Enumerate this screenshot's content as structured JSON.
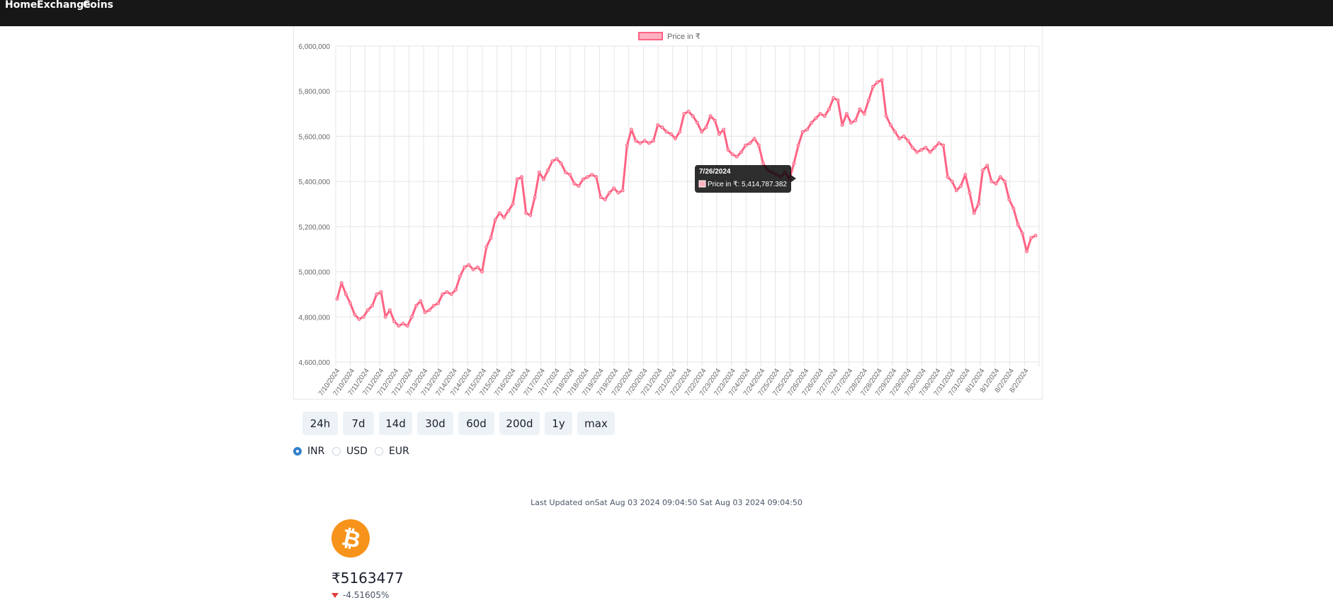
{
  "nav": {
    "home": "Home",
    "exchange": "Exchange",
    "coins": "Coins"
  },
  "chart_data": {
    "type": "line",
    "legend": "Price in ₹",
    "legend_position": "top",
    "grid": true,
    "ylim": [
      4600000,
      6000000
    ],
    "yticks": [
      "6,000,000",
      "5,800,000",
      "5,600,000",
      "5,400,000",
      "5,200,000",
      "5,000,000",
      "4,800,000",
      "4,600,000"
    ],
    "x_labels": [
      "7/10/2024",
      "7/10/2024",
      "7/11/2024",
      "7/11/2024",
      "7/12/2024",
      "7/12/2024",
      "7/13/2024",
      "7/13/2024",
      "7/14/2024",
      "7/14/2024",
      "7/15/2024",
      "7/15/2024",
      "7/16/2024",
      "7/16/2024",
      "7/17/2024",
      "7/17/2024",
      "7/18/2024",
      "7/18/2024",
      "7/19/2024",
      "7/19/2024",
      "7/20/2024",
      "7/20/2024",
      "7/21/2024",
      "7/21/2024",
      "7/22/2024",
      "7/22/2024",
      "7/23/2024",
      "7/23/2024",
      "7/24/2024",
      "7/24/2024",
      "7/25/2024",
      "7/25/2024",
      "7/26/2024",
      "7/26/2024",
      "7/27/2024",
      "7/27/2024",
      "7/28/2024",
      "7/28/2024",
      "7/29/2024",
      "7/29/2024",
      "7/30/2024",
      "7/30/2024",
      "7/31/2024",
      "7/31/2024",
      "8/1/2024",
      "8/1/2024",
      "8/2/2024",
      "8/2/2024"
    ],
    "values": [
      4880000,
      4950000,
      4900000,
      4860000,
      4810000,
      4790000,
      4800000,
      4830000,
      4850000,
      4900000,
      4910000,
      4800000,
      4830000,
      4780000,
      4760000,
      4770000,
      4760000,
      4800000,
      4850000,
      4870000,
      4820000,
      4830000,
      4850000,
      4860000,
      4900000,
      4910000,
      4900000,
      4920000,
      4980000,
      5020000,
      5030000,
      5010000,
      5020000,
      5000000,
      5110000,
      5150000,
      5230000,
      5260000,
      5240000,
      5270000,
      5300000,
      5410000,
      5420000,
      5260000,
      5250000,
      5330000,
      5440000,
      5410000,
      5450000,
      5490000,
      5500000,
      5480000,
      5440000,
      5430000,
      5390000,
      5380000,
      5410000,
      5420000,
      5430000,
      5420000,
      5330000,
      5320000,
      5350000,
      5370000,
      5350000,
      5360000,
      5560000,
      5630000,
      5580000,
      5570000,
      5580000,
      5570000,
      5580000,
      5650000,
      5640000,
      5620000,
      5610000,
      5590000,
      5620000,
      5700000,
      5710000,
      5690000,
      5660000,
      5620000,
      5640000,
      5690000,
      5670000,
      5610000,
      5630000,
      5540000,
      5520000,
      5510000,
      5530000,
      5560000,
      5570000,
      5590000,
      5560000,
      5480000,
      5450000,
      5440000,
      5430000,
      5420000,
      5440000,
      5410000,
      5480000,
      5560000,
      5620000,
      5630000,
      5660000,
      5680000,
      5700000,
      5690000,
      5720000,
      5770000,
      5760000,
      5650000,
      5700000,
      5660000,
      5670000,
      5720000,
      5700000,
      5760000,
      5820000,
      5840000,
      5850000,
      5690000,
      5650000,
      5620000,
      5590000,
      5600000,
      5580000,
      5550000,
      5530000,
      5540000,
      5550000,
      5530000,
      5550000,
      5570000,
      5560000,
      5420000,
      5400000,
      5360000,
      5380000,
      5430000,
      5350000,
      5260000,
      5300000,
      5450000,
      5470000,
      5400000,
      5390000,
      5420000,
      5400000,
      5320000,
      5280000,
      5210000,
      5170000,
      5090000,
      5150000,
      5160000
    ],
    "tooltip": {
      "date": "7/26/2024",
      "text": "Price in ₹: 5,414,787.382"
    }
  },
  "ranges": [
    "24h",
    "7d",
    "14d",
    "30d",
    "60d",
    "200d",
    "1y",
    "max"
  ],
  "currency": {
    "options": [
      "INR",
      "USD",
      "EUR"
    ],
    "selected": "INR"
  },
  "coin": {
    "last_updated": "Last Updated onSat Aug 03 2024 09:04:50 Sat Aug 03 2024 09:04:50",
    "price": "₹5163477",
    "change": "-4.51605%",
    "logo_icon": "bitcoin-icon",
    "logo_color": "#f7931a"
  },
  "colors": {
    "line": "#ff6384",
    "fill": "#ffb1c1",
    "nav_bg": "#171717",
    "radio_on": "#3182ce"
  }
}
